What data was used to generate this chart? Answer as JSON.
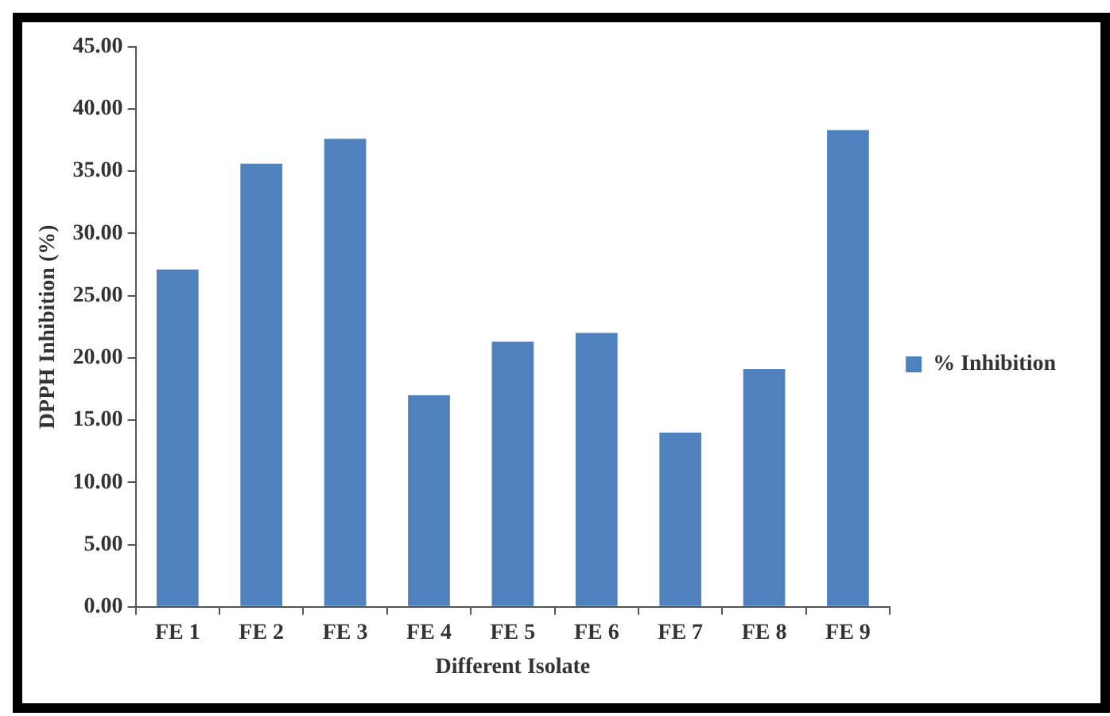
{
  "chart_data": {
    "type": "bar",
    "xlabel": "Different Isolate",
    "ylabel": "DPPH Inhibition (%)",
    "categories": [
      "FE 1",
      "FE 2",
      "FE 3",
      "FE 4",
      "FE 5",
      "FE 6",
      "FE 7",
      "FE 8",
      "FE 9"
    ],
    "series": [
      {
        "name": "% Inhibition",
        "color": "#4f81bd",
        "values": [
          27.1,
          35.6,
          37.6,
          17.0,
          21.3,
          22.0,
          14.0,
          19.1,
          38.3
        ]
      }
    ],
    "ylim": [
      0,
      45
    ],
    "yticks": [
      {
        "value": 0,
        "label": "0.00"
      },
      {
        "value": 5,
        "label": "5.00"
      },
      {
        "value": 10,
        "label": "10.00"
      },
      {
        "value": 15,
        "label": "15.00"
      },
      {
        "value": 20,
        "label": "20.00"
      },
      {
        "value": 25,
        "label": "25.00"
      },
      {
        "value": 30,
        "label": "30.00"
      },
      {
        "value": 35,
        "label": "35.00"
      },
      {
        "value": 40,
        "label": "40.00"
      },
      {
        "value": 45,
        "label": "45.00"
      }
    ],
    "grid": false,
    "legend": "right"
  }
}
